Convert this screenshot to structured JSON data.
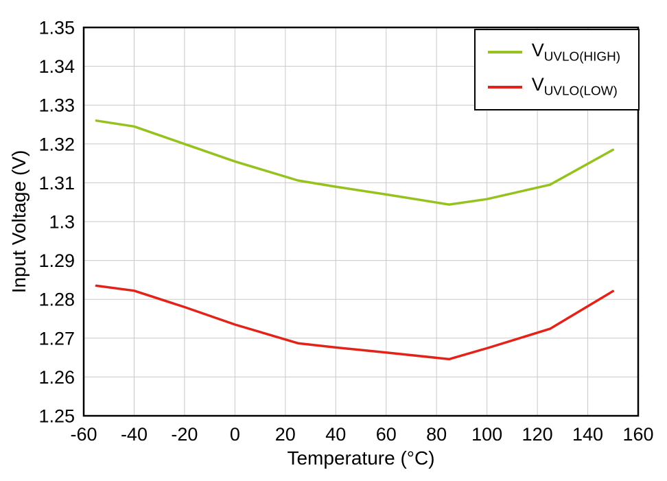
{
  "chart_data": {
    "type": "line",
    "title": "",
    "xlabel": "Temperature (°C)",
    "ylabel": "Input Voltage (V)",
    "xlim": [
      -60,
      160
    ],
    "ylim": [
      1.25,
      1.35
    ],
    "xticks": [
      -60,
      -40,
      -20,
      0,
      20,
      40,
      60,
      80,
      100,
      120,
      140,
      160
    ],
    "yticks": [
      1.25,
      1.26,
      1.27,
      1.28,
      1.29,
      1.3,
      1.31,
      1.32,
      1.33,
      1.34,
      1.35
    ],
    "grid": true,
    "legend_position": "top-right",
    "series": [
      {
        "name": "VUVLO(HIGH)",
        "label_main": "V",
        "label_sub": "UVLO(HIGH)",
        "color": "#96c21e",
        "x": [
          -55,
          -40,
          -20,
          0,
          25,
          40,
          60,
          85,
          100,
          125,
          150
        ],
        "y": [
          1.326,
          1.3245,
          1.32,
          1.3155,
          1.3106,
          1.309,
          1.307,
          1.3044,
          1.3058,
          1.3095,
          1.3185
        ]
      },
      {
        "name": "VUVLO(LOW)",
        "label_main": "V",
        "label_sub": "UVLO(LOW)",
        "color": "#e3231a",
        "x": [
          -55,
          -40,
          -20,
          0,
          25,
          40,
          60,
          85,
          100,
          125,
          150
        ],
        "y": [
          1.2835,
          1.2822,
          1.278,
          1.2735,
          1.2687,
          1.2676,
          1.2663,
          1.2646,
          1.2674,
          1.2724,
          1.2821
        ]
      }
    ]
  },
  "colors": {
    "grid": "#c8c8c8",
    "axis": "#000000",
    "background": "#ffffff"
  }
}
